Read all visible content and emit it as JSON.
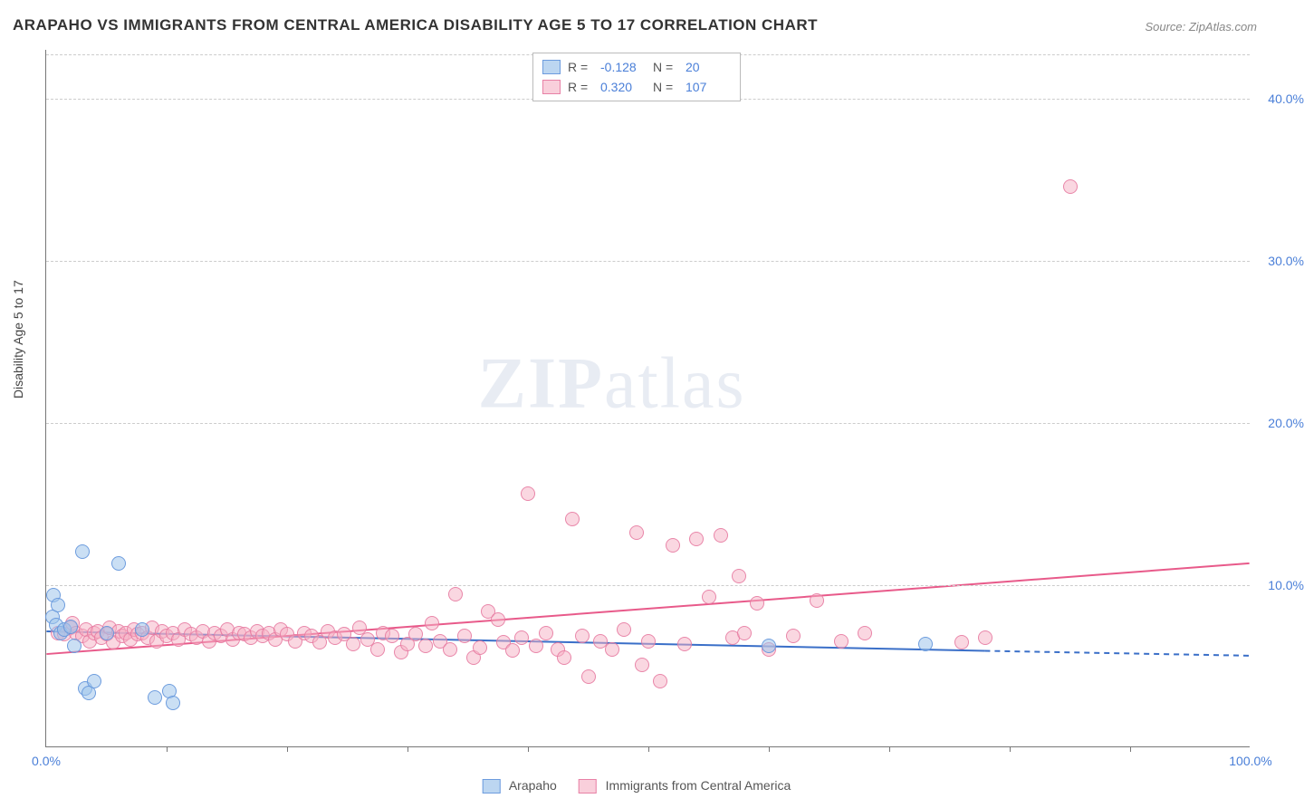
{
  "title": "ARAPAHO VS IMMIGRANTS FROM CENTRAL AMERICA DISABILITY AGE 5 TO 17 CORRELATION CHART",
  "source": "Source: ZipAtlas.com",
  "ylabel": "Disability Age 5 to 17",
  "watermark_a": "ZIP",
  "watermark_b": "atlas",
  "chart": {
    "type": "scatter",
    "xlim": [
      0,
      100
    ],
    "ylim": [
      0,
      43
    ],
    "background_color": "#ffffff",
    "grid_color": "#cccccc",
    "axis_color": "#777777",
    "tick_label_color": "#4a7fd8",
    "y_gridlines": [
      10,
      20,
      30,
      40,
      42.7
    ],
    "y_tick_labels": [
      {
        "v": 10,
        "t": "10.0%"
      },
      {
        "v": 20,
        "t": "20.0%"
      },
      {
        "v": 30,
        "t": "30.0%"
      },
      {
        "v": 40,
        "t": "40.0%"
      }
    ],
    "x_tick_marks": [
      10,
      20,
      30,
      40,
      50,
      60,
      70,
      80,
      90
    ],
    "x_tick_labels": [
      {
        "v": 0,
        "t": "0.0%"
      },
      {
        "v": 100,
        "t": "100.0%"
      }
    ],
    "series_a": {
      "name": "Arapaho",
      "color_fill": "rgba(159,196,235,0.55)",
      "color_stroke": "rgba(100,150,220,0.9)",
      "line_color": "#3a6fc8",
      "r_value": "-0.128",
      "n_value": "20",
      "regression": {
        "x1": 0,
        "y1": 7.1,
        "x2": 78,
        "y2": 5.9,
        "dash_x2": 100,
        "dash_y2": 5.6
      },
      "points": [
        [
          0.5,
          8.0
        ],
        [
          0.6,
          9.3
        ],
        [
          0.8,
          7.5
        ],
        [
          1.0,
          8.7
        ],
        [
          1.2,
          7.0
        ],
        [
          1.5,
          7.2
        ],
        [
          2.0,
          7.4
        ],
        [
          2.3,
          6.2
        ],
        [
          3.0,
          12.0
        ],
        [
          3.2,
          3.6
        ],
        [
          3.5,
          3.3
        ],
        [
          4.0,
          4.0
        ],
        [
          5.0,
          7.0
        ],
        [
          6.0,
          11.3
        ],
        [
          8.0,
          7.2
        ],
        [
          9.0,
          3.0
        ],
        [
          10.2,
          3.4
        ],
        [
          10.5,
          2.7
        ],
        [
          60.0,
          6.2
        ],
        [
          73.0,
          6.3
        ]
      ]
    },
    "series_b": {
      "name": "Immigrants from Central America",
      "color_fill": "rgba(245,175,195,0.5)",
      "color_stroke": "rgba(230,120,160,0.85)",
      "line_color": "#e85a8a",
      "r_value": "0.320",
      "n_value": "107",
      "regression": {
        "x1": 0,
        "y1": 5.7,
        "x2": 100,
        "y2": 11.3
      },
      "points": [
        [
          1.0,
          7.0
        ],
        [
          1.5,
          6.9
        ],
        [
          2.0,
          7.3
        ],
        [
          2.2,
          7.6
        ],
        [
          2.5,
          7.0
        ],
        [
          3.0,
          6.8
        ],
        [
          3.3,
          7.2
        ],
        [
          3.6,
          6.5
        ],
        [
          4.0,
          7.0
        ],
        [
          4.3,
          7.1
        ],
        [
          4.6,
          6.7
        ],
        [
          5.0,
          6.9
        ],
        [
          5.3,
          7.3
        ],
        [
          5.6,
          6.4
        ],
        [
          6.0,
          7.1
        ],
        [
          6.3,
          6.8
        ],
        [
          6.6,
          7.0
        ],
        [
          7.0,
          6.6
        ],
        [
          7.3,
          7.2
        ],
        [
          7.6,
          6.9
        ],
        [
          8.0,
          7.0
        ],
        [
          8.4,
          6.7
        ],
        [
          8.8,
          7.3
        ],
        [
          9.2,
          6.5
        ],
        [
          9.6,
          7.1
        ],
        [
          10.0,
          6.8
        ],
        [
          10.5,
          7.0
        ],
        [
          11.0,
          6.6
        ],
        [
          11.5,
          7.2
        ],
        [
          12.0,
          6.9
        ],
        [
          12.5,
          6.7
        ],
        [
          13.0,
          7.1
        ],
        [
          13.5,
          6.5
        ],
        [
          14.0,
          7.0
        ],
        [
          14.5,
          6.8
        ],
        [
          15.0,
          7.2
        ],
        [
          15.5,
          6.6
        ],
        [
          16.0,
          7.0
        ],
        [
          16.5,
          6.9
        ],
        [
          17.0,
          6.7
        ],
        [
          17.5,
          7.1
        ],
        [
          18.0,
          6.8
        ],
        [
          18.5,
          7.0
        ],
        [
          19.0,
          6.6
        ],
        [
          19.5,
          7.2
        ],
        [
          20.0,
          6.9
        ],
        [
          20.7,
          6.5
        ],
        [
          21.4,
          7.0
        ],
        [
          22.0,
          6.8
        ],
        [
          22.7,
          6.4
        ],
        [
          23.4,
          7.1
        ],
        [
          24.0,
          6.7
        ],
        [
          24.7,
          6.9
        ],
        [
          25.5,
          6.3
        ],
        [
          26.0,
          7.3
        ],
        [
          26.7,
          6.6
        ],
        [
          27.5,
          6.0
        ],
        [
          28.0,
          7.0
        ],
        [
          28.7,
          6.8
        ],
        [
          29.5,
          5.8
        ],
        [
          30.0,
          6.3
        ],
        [
          30.7,
          6.9
        ],
        [
          31.5,
          6.2
        ],
        [
          32.0,
          7.6
        ],
        [
          32.7,
          6.5
        ],
        [
          33.5,
          6.0
        ],
        [
          34.0,
          9.4
        ],
        [
          34.7,
          6.8
        ],
        [
          35.5,
          5.5
        ],
        [
          36.0,
          6.1
        ],
        [
          36.7,
          8.3
        ],
        [
          37.5,
          7.8
        ],
        [
          38.0,
          6.4
        ],
        [
          38.7,
          5.9
        ],
        [
          39.5,
          6.7
        ],
        [
          40.0,
          15.6
        ],
        [
          40.7,
          6.2
        ],
        [
          41.5,
          7.0
        ],
        [
          42.5,
          6.0
        ],
        [
          43.0,
          5.5
        ],
        [
          43.7,
          14.0
        ],
        [
          44.5,
          6.8
        ],
        [
          45.0,
          4.3
        ],
        [
          46.0,
          6.5
        ],
        [
          47.0,
          6.0
        ],
        [
          48.0,
          7.2
        ],
        [
          49.0,
          13.2
        ],
        [
          49.5,
          5.0
        ],
        [
          50.0,
          6.5
        ],
        [
          51.0,
          4.0
        ],
        [
          52.0,
          12.4
        ],
        [
          53.0,
          6.3
        ],
        [
          54.0,
          12.8
        ],
        [
          55.0,
          9.2
        ],
        [
          56.0,
          13.0
        ],
        [
          57.0,
          6.7
        ],
        [
          57.5,
          10.5
        ],
        [
          58.0,
          7.0
        ],
        [
          59.0,
          8.8
        ],
        [
          60.0,
          6.0
        ],
        [
          62.0,
          6.8
        ],
        [
          64.0,
          9.0
        ],
        [
          66.0,
          6.5
        ],
        [
          68.0,
          7.0
        ],
        [
          76.0,
          6.4
        ],
        [
          78.0,
          6.7
        ],
        [
          85.0,
          34.5
        ]
      ]
    }
  },
  "legend_top": {
    "r_label": "R =",
    "n_label": "N ="
  },
  "legend_bottom": {
    "a": "Arapaho",
    "b": "Immigrants from Central America"
  }
}
